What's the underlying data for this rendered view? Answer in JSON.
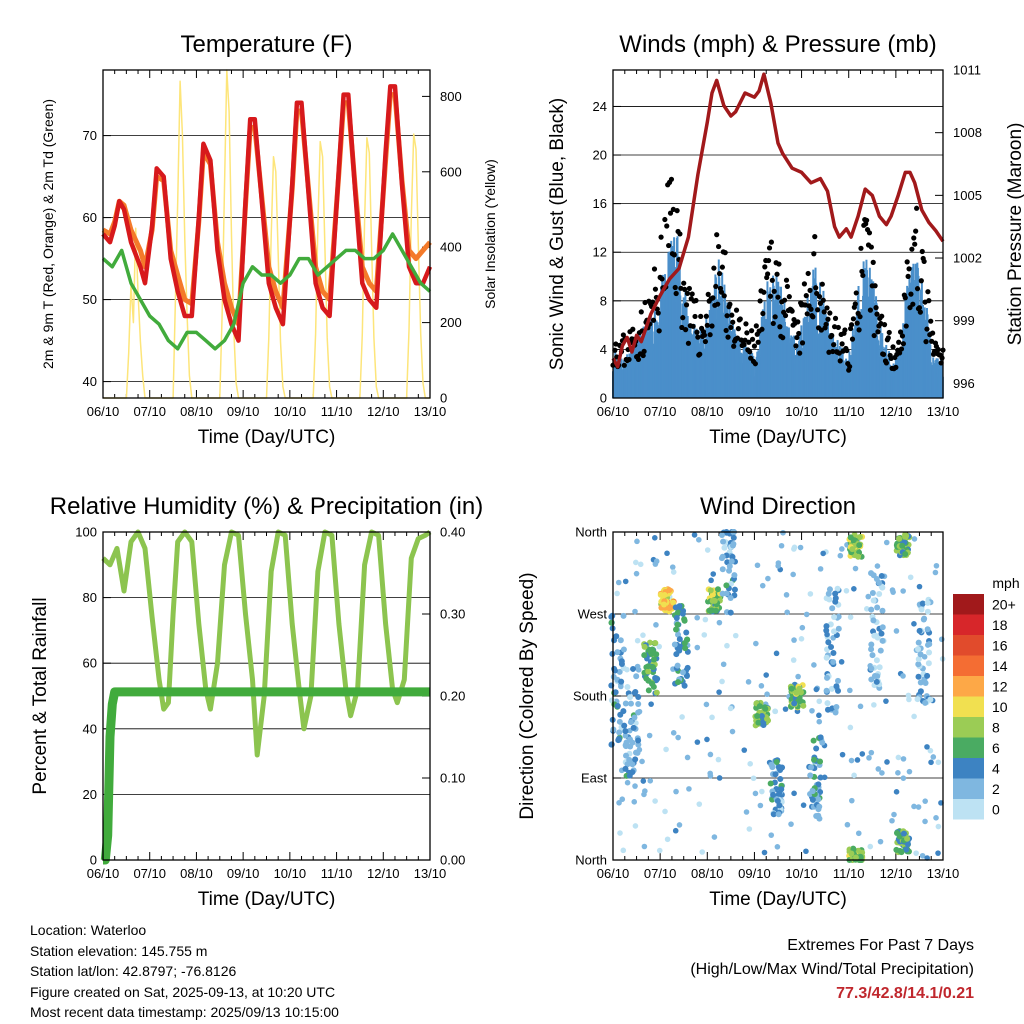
{
  "chart_data": [
    {
      "type": "line",
      "title": "Temperature (F)",
      "xlabel": "Time (Day/UTC)",
      "ylabel": "2m & 9m T (Red, Orange) & 2m Td (Green)",
      "y2label": "Solar Insolation (Yellow)",
      "x_ticks": [
        "06/10",
        "07/10",
        "08/10",
        "09/10",
        "10/10",
        "11/10",
        "12/10",
        "13/10"
      ],
      "xlim": [
        0,
        7
      ],
      "ylim": [
        38,
        78
      ],
      "yticks": [
        40,
        50,
        60,
        70
      ],
      "y2lim": [
        0,
        870
      ],
      "y2ticks": [
        0,
        200,
        400,
        600,
        800
      ],
      "grid": true,
      "series": [
        {
          "name": "2m T",
          "color": "#d7191c",
          "axis": "left",
          "x": [
            0,
            0.15,
            0.25,
            0.35,
            0.45,
            0.6,
            0.8,
            0.9,
            1.05,
            1.15,
            1.3,
            1.45,
            1.6,
            1.75,
            1.9,
            2.05,
            2.15,
            2.3,
            2.45,
            2.6,
            2.75,
            2.9,
            3.05,
            3.15,
            3.25,
            3.4,
            3.55,
            3.7,
            3.85,
            4.05,
            4.15,
            4.25,
            4.4,
            4.55,
            4.7,
            4.85,
            5.05,
            5.15,
            5.25,
            5.4,
            5.55,
            5.7,
            5.85,
            6.05,
            6.15,
            6.25,
            6.4,
            6.55,
            6.7,
            6.85,
            7
          ],
          "y": [
            58,
            57,
            59,
            62,
            61,
            57,
            54,
            52,
            59,
            66,
            65,
            55,
            51,
            48,
            48,
            60,
            69,
            67,
            56,
            50,
            47,
            45,
            62,
            72,
            72,
            62,
            52,
            49,
            47,
            64,
            74,
            74,
            63,
            52,
            49,
            48,
            66,
            75,
            75,
            63,
            52,
            50,
            49,
            68,
            76,
            76,
            64,
            54,
            52,
            52,
            54
          ]
        },
        {
          "name": "9m T",
          "color": "#f47a2a",
          "axis": "left",
          "x": [
            0,
            0.15,
            0.25,
            0.35,
            0.45,
            0.6,
            0.8,
            0.9,
            1.05,
            1.15,
            1.3,
            1.45,
            1.6,
            1.75,
            1.9,
            2.05,
            2.15,
            2.3,
            2.45,
            2.6,
            2.75,
            2.9,
            3.05,
            3.15,
            3.25,
            3.4,
            3.55,
            3.7,
            3.85,
            4.05,
            4.15,
            4.25,
            4.4,
            4.55,
            4.7,
            4.85,
            5.05,
            5.15,
            5.25,
            5.4,
            5.55,
            5.7,
            5.85,
            6.05,
            6.15,
            6.25,
            6.4,
            6.55,
            6.7,
            6.85,
            7
          ],
          "y": [
            58.5,
            58,
            59.5,
            62,
            61.5,
            58.5,
            56,
            54,
            58.5,
            65,
            64.5,
            56,
            53,
            50,
            49.5,
            59.5,
            68,
            66.5,
            57,
            52,
            49,
            47,
            61.5,
            71,
            71,
            62.5,
            54,
            51,
            49,
            63.5,
            73,
            73,
            63.5,
            54,
            51,
            50,
            65.5,
            74,
            74,
            63.5,
            54,
            52,
            51,
            67,
            75,
            75,
            64.5,
            56,
            55,
            56,
            57
          ]
        },
        {
          "name": "2m Td",
          "color": "#41ab3c",
          "axis": "left",
          "x": [
            0,
            0.2,
            0.4,
            0.6,
            0.8,
            1.0,
            1.2,
            1.4,
            1.6,
            1.8,
            2.0,
            2.2,
            2.4,
            2.6,
            2.8,
            3.0,
            3.2,
            3.4,
            3.6,
            3.8,
            4.0,
            4.2,
            4.4,
            4.6,
            4.8,
            5.0,
            5.2,
            5.4,
            5.6,
            5.8,
            6.0,
            6.2,
            6.4,
            6.6,
            6.8,
            7
          ],
          "y": [
            55,
            54,
            56,
            52,
            50,
            48,
            47,
            45,
            44,
            46,
            46,
            45,
            44,
            45,
            47,
            52,
            54,
            53,
            53,
            52,
            53,
            55,
            55,
            53,
            54,
            55,
            56,
            56,
            55,
            55,
            56,
            58,
            56,
            54,
            52,
            51
          ]
        },
        {
          "name": "Solar Insolation",
          "color": "#fde57a",
          "axis": "right",
          "x": [
            0.0,
            0.5,
            0.55,
            0.6,
            0.65,
            0.7,
            0.75,
            0.8,
            0.85,
            0.9,
            1.0,
            1.5,
            1.55,
            1.6,
            1.65,
            1.7,
            1.75,
            1.8,
            1.85,
            1.9,
            2.0,
            2.5,
            2.55,
            2.6,
            2.65,
            2.7,
            2.75,
            2.8,
            2.85,
            2.9,
            3.0,
            3.5,
            3.55,
            3.6,
            3.65,
            3.7,
            3.75,
            3.8,
            3.85,
            3.9,
            4.0,
            4.5,
            4.55,
            4.6,
            4.65,
            4.7,
            4.75,
            4.8,
            4.85,
            4.9,
            5.0,
            5.5,
            5.55,
            5.6,
            5.65,
            5.7,
            5.75,
            5.8,
            5.85,
            5.9,
            6.0,
            6.5,
            6.55,
            6.6,
            6.65,
            6.7,
            6.75,
            6.8,
            6.85,
            6.9,
            7.0
          ],
          "y": [
            0,
            0,
            120,
            300,
            200,
            450,
            280,
            150,
            60,
            0,
            0,
            0,
            260,
            520,
            840,
            700,
            420,
            220,
            60,
            0,
            0,
            0,
            220,
            560,
            870,
            760,
            430,
            180,
            40,
            0,
            0,
            0,
            160,
            430,
            640,
            600,
            380,
            150,
            30,
            0,
            0,
            0,
            170,
            460,
            680,
            640,
            400,
            160,
            30,
            0,
            0,
            0,
            170,
            470,
            690,
            650,
            400,
            160,
            30,
            0,
            0,
            0,
            180,
            480,
            700,
            660,
            410,
            170,
            40,
            0,
            0
          ]
        }
      ]
    },
    {
      "type": "scatter",
      "title": "Winds (mph) & Pressure (mb)",
      "xlabel": "Time (Day/UTC)",
      "ylabel": "Sonic Wind & Gust (Blue, Black)",
      "y2label": "Station Pressure (Maroon)",
      "x_ticks": [
        "06/10",
        "07/10",
        "08/10",
        "09/10",
        "10/10",
        "11/10",
        "12/10",
        "13/10"
      ],
      "xlim": [
        0,
        7
      ],
      "ylim": [
        0,
        27
      ],
      "yticks": [
        0,
        4,
        8,
        12,
        16,
        20,
        24
      ],
      "y2lim": [
        995.3,
        1011
      ],
      "y2ticks": [
        996,
        999,
        1002,
        1005,
        1008,
        1011
      ],
      "grid": true,
      "wind_envelope": {
        "x": [
          0,
          0.2,
          0.4,
          0.6,
          0.8,
          1.0,
          1.2,
          1.35,
          1.5,
          1.7,
          1.9,
          2.1,
          2.25,
          2.45,
          2.6,
          2.8,
          3.0,
          3.2,
          3.35,
          3.5,
          3.7,
          3.9,
          4.1,
          4.25,
          4.45,
          4.6,
          4.8,
          5.0,
          5.2,
          5.35,
          5.5,
          5.7,
          5.9,
          6.1,
          6.25,
          6.45,
          6.6,
          6.8,
          7.0
        ],
        "sustained": [
          4,
          3,
          4,
          5,
          6,
          8,
          11,
          13,
          8,
          6,
          5,
          8,
          10,
          7,
          5,
          4,
          3,
          7,
          10,
          9,
          6,
          4,
          7,
          10,
          8,
          5,
          4,
          3,
          8,
          11,
          9,
          5,
          3,
          4,
          9,
          11,
          8,
          3,
          3
        ],
        "gust": [
          6,
          5,
          6,
          7,
          9,
          12,
          19,
          17,
          11,
          8,
          7,
          11,
          14,
          10,
          7,
          6,
          5,
          10,
          14,
          12,
          9,
          6,
          10,
          13,
          11,
          7,
          6,
          5,
          11,
          15,
          12,
          7,
          5,
          6,
          13,
          15,
          11,
          5,
          4
        ]
      },
      "series": [
        {
          "name": "Station Pressure",
          "color": "#a1191b",
          "axis": "right",
          "x": [
            0,
            0.1,
            0.2,
            0.3,
            0.4,
            0.5,
            0.6,
            0.8,
            1.0,
            1.2,
            1.4,
            1.6,
            1.8,
            2.0,
            2.1,
            2.2,
            2.35,
            2.5,
            2.6,
            2.8,
            3.0,
            3.1,
            3.2,
            3.35,
            3.5,
            3.6,
            3.8,
            4.0,
            4.2,
            4.4,
            4.55,
            4.7,
            4.8,
            4.95,
            5.05,
            5.2,
            5.35,
            5.5,
            5.65,
            5.8,
            5.9,
            6.05,
            6.2,
            6.3,
            6.4,
            6.55,
            6.7,
            6.85,
            7
          ],
          "y": [
            997.2,
            996.8,
            997.8,
            998.2,
            997.5,
            998.3,
            998.0,
            999.3,
            1000.2,
            1001.0,
            1001.5,
            1003.0,
            1006.0,
            1008.5,
            1009.9,
            1010.5,
            1009.3,
            1008.8,
            1009.0,
            1009.9,
            1009.7,
            1010.0,
            1010.8,
            1009.4,
            1007.5,
            1007.0,
            1006.3,
            1006.1,
            1005.6,
            1005.8,
            1005.2,
            1003.5,
            1003.0,
            1003.4,
            1003.0,
            1004.0,
            1005.3,
            1005.0,
            1004.0,
            1003.6,
            1004.0,
            1005.0,
            1006.1,
            1006.1,
            1005.6,
            1004.3,
            1003.7,
            1003.3,
            1002.8
          ]
        }
      ]
    },
    {
      "type": "line",
      "title": "Relative Humidity (%) & Precipitation (in)",
      "xlabel": "Time (Day/UTC)",
      "ylabel": "Percent & Total Rainfall",
      "x_ticks": [
        "06/10",
        "07/10",
        "08/10",
        "09/10",
        "10/10",
        "11/10",
        "12/10",
        "13/10"
      ],
      "xlim": [
        0,
        7
      ],
      "ylim": [
        0,
        100
      ],
      "yticks": [
        0,
        20,
        40,
        60,
        80,
        100
      ],
      "y2lim": [
        0,
        0.4
      ],
      "y2ticks": [
        "0.00",
        "0.10",
        "0.20",
        "0.30",
        "0.40"
      ],
      "grid": true,
      "series": [
        {
          "name": "Relative Humidity",
          "color": "#8cc44f",
          "axis": "left",
          "x": [
            0,
            0.15,
            0.3,
            0.45,
            0.6,
            0.75,
            0.9,
            1.05,
            1.2,
            1.3,
            1.4,
            1.5,
            1.6,
            1.75,
            1.9,
            2.05,
            2.2,
            2.3,
            2.45,
            2.6,
            2.75,
            2.9,
            3.05,
            3.2,
            3.3,
            3.45,
            3.6,
            3.75,
            3.9,
            4.05,
            4.2,
            4.3,
            4.45,
            4.6,
            4.75,
            4.9,
            5.05,
            5.2,
            5.3,
            5.45,
            5.6,
            5.75,
            5.9,
            6.05,
            6.2,
            6.3,
            6.45,
            6.6,
            6.75,
            6.9,
            7
          ],
          "y": [
            92,
            90,
            95,
            82,
            97,
            100,
            95,
            74,
            55,
            46,
            48,
            75,
            97,
            100,
            97,
            72,
            52,
            46,
            60,
            90,
            100,
            99,
            75,
            55,
            32,
            50,
            88,
            100,
            99,
            72,
            52,
            40,
            50,
            88,
            100,
            99,
            72,
            52,
            44,
            52,
            90,
            100,
            99,
            72,
            52,
            48,
            55,
            92,
            98,
            99,
            100
          ]
        },
        {
          "name": "Total Rainfall",
          "color": "#41ab3c",
          "axis": "right",
          "x": [
            0,
            0.05,
            0.1,
            0.15,
            0.2,
            0.25,
            0.3,
            7
          ],
          "y": [
            0.0,
            0.0,
            0.03,
            0.15,
            0.19,
            0.205,
            0.205,
            0.205
          ]
        }
      ]
    },
    {
      "type": "scatter",
      "title": "Wind Direction",
      "xlabel": "Time (Day/UTC)",
      "ylabel": "Direction (Colored By Speed)",
      "x_ticks": [
        "06/10",
        "07/10",
        "08/10",
        "09/10",
        "10/10",
        "11/10",
        "12/10",
        "13/10"
      ],
      "xlim": [
        0,
        7
      ],
      "y_ticks": [
        "North",
        "East",
        "South",
        "West",
        "North"
      ],
      "ylim": [
        0,
        360
      ],
      "grid": true,
      "legend": {
        "title": "mph",
        "labels": [
          "20+",
          "18",
          "16",
          "14",
          "12",
          "10",
          "8",
          "6",
          "4",
          "2",
          "0"
        ],
        "colors": [
          "#a1191b",
          "#d7262a",
          "#e14b2c",
          "#f46d33",
          "#fda847",
          "#f1e050",
          "#9bcc55",
          "#4aab62",
          "#3d83c2",
          "#7fb7e0",
          "#bde2f3"
        ]
      },
      "clusters": [
        {
          "x": 0.1,
          "dir": 200,
          "spread": 150,
          "speed": 3
        },
        {
          "x": 0.4,
          "dir": 150,
          "spread": 120,
          "speed": 3
        },
        {
          "x": 0.8,
          "dir": 210,
          "spread": 60,
          "speed": 6
        },
        {
          "x": 1.15,
          "dir": 285,
          "spread": 25,
          "speed": 11
        },
        {
          "x": 1.45,
          "dir": 235,
          "spread": 90,
          "speed": 4
        },
        {
          "x": 2.15,
          "dir": 285,
          "spread": 25,
          "speed": 7
        },
        {
          "x": 2.45,
          "dir": 320,
          "spread": 100,
          "speed": 3
        },
        {
          "x": 3.15,
          "dir": 160,
          "spread": 25,
          "speed": 7
        },
        {
          "x": 3.45,
          "dir": 80,
          "spread": 60,
          "speed": 3
        },
        {
          "x": 3.9,
          "dir": 180,
          "spread": 25,
          "speed": 7
        },
        {
          "x": 4.3,
          "dir": 90,
          "spread": 90,
          "speed": 4
        },
        {
          "x": 4.65,
          "dir": 230,
          "spread": 140,
          "speed": 2
        },
        {
          "x": 5.15,
          "dir": 345,
          "spread": 25,
          "speed": 8
        },
        {
          "x": 5.15,
          "dir": 5,
          "spread": 15,
          "speed": 8
        },
        {
          "x": 5.6,
          "dir": 250,
          "spread": 130,
          "speed": 2
        },
        {
          "x": 6.15,
          "dir": 345,
          "spread": 25,
          "speed": 6
        },
        {
          "x": 6.15,
          "dir": 20,
          "spread": 25,
          "speed": 6
        },
        {
          "x": 6.6,
          "dir": 230,
          "spread": 120,
          "speed": 2
        }
      ]
    }
  ],
  "footer": {
    "location": "Location: Waterloo",
    "elevation": "Station elevation: 145.755 m",
    "latlon": "Station lat/lon: 42.8797; -76.8126",
    "created": "Figure created on Sat, 2025-09-13, at 10:20 UTC",
    "timestamp": "Most recent data timestamp: 2025/09/13 10:15:00"
  },
  "extremes": {
    "title": "Extremes For Past 7 Days",
    "subtitle": "(High/Low/Max Wind/Total Precipitation)",
    "values": "77.3/42.8/14.1/0.21"
  }
}
